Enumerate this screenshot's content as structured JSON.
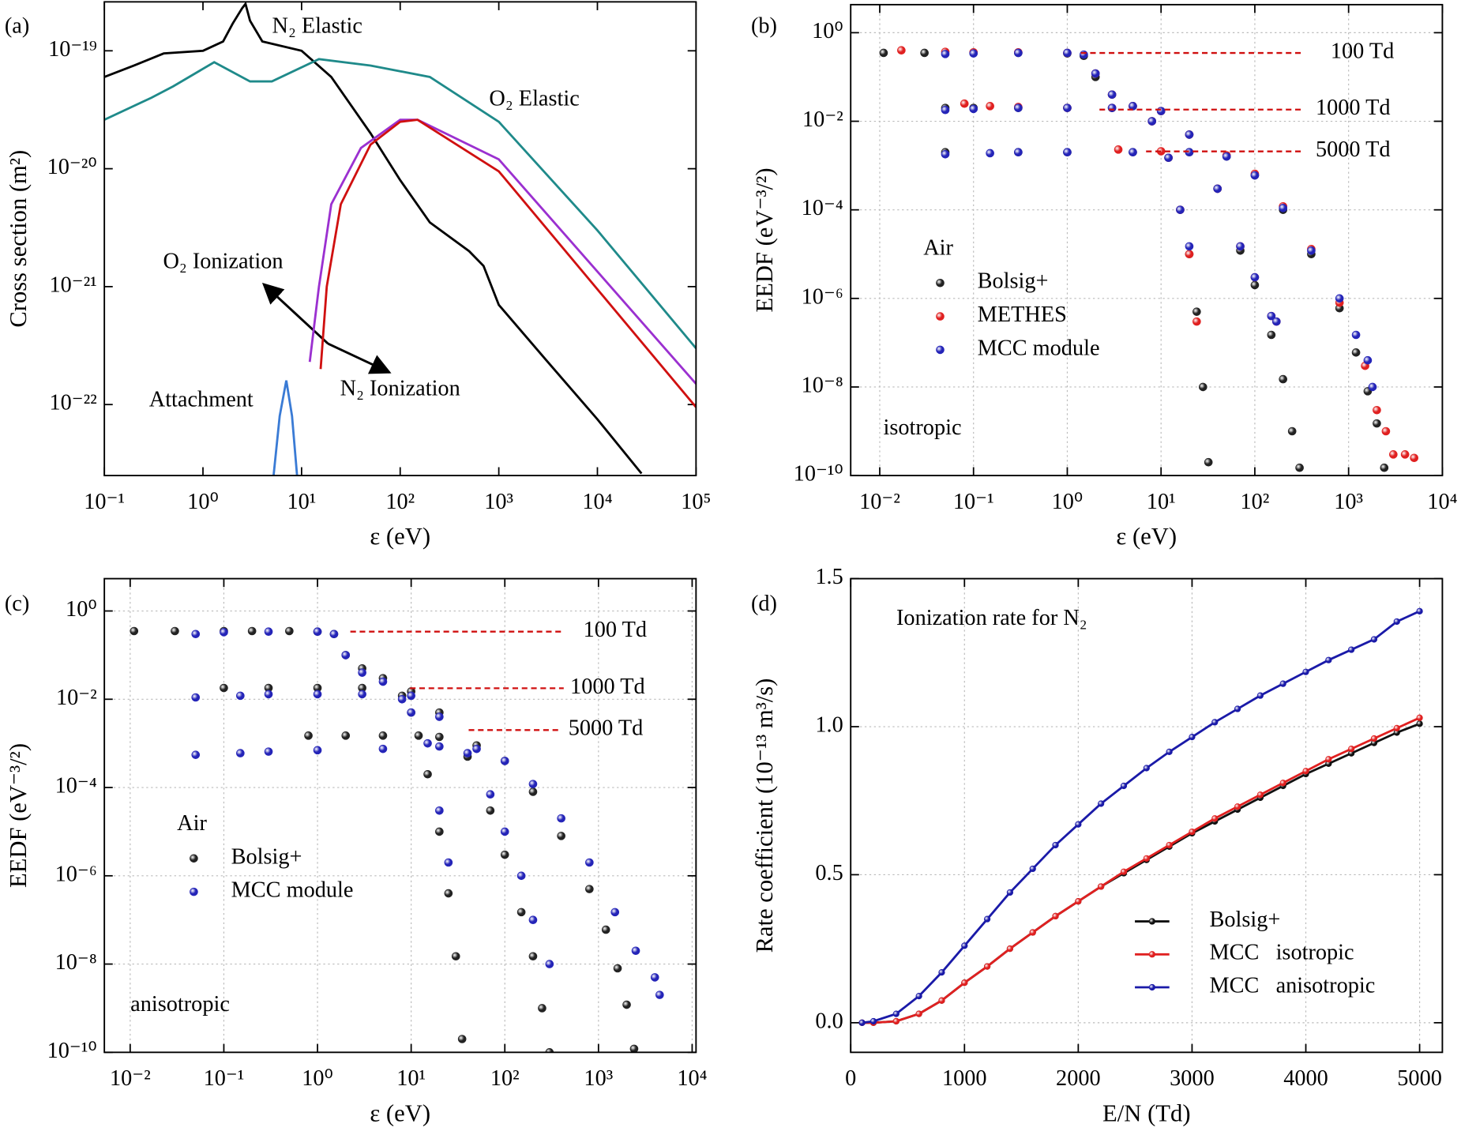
{
  "chart_data": [
    {
      "type": "line",
      "panel": "(a)",
      "xlog": true,
      "ylog": true,
      "xlim": [
        0.1,
        100000
      ],
      "ylim": [
        2.5e-23,
        2.6e-19
      ],
      "xticks": [
        {
          "value": 0.1,
          "label": "10⁻¹"
        },
        {
          "value": 1,
          "label": "10⁰"
        },
        {
          "value": 10,
          "label": "10¹"
        },
        {
          "value": 100,
          "label": "10²"
        },
        {
          "value": 1000,
          "label": "10³"
        },
        {
          "value": 10000,
          "label": "10⁴"
        },
        {
          "value": 100000,
          "label": "10⁵"
        }
      ],
      "yticks": [
        {
          "value": 1e-22,
          "label": "10⁻²²"
        },
        {
          "value": 1e-21,
          "label": "10⁻²¹"
        },
        {
          "value": 1e-20,
          "label": "10⁻²⁰"
        },
        {
          "value": 1e-19,
          "label": "10⁻¹⁹"
        }
      ],
      "xlabel": "ε (eV)",
      "ylabel": "Cross section (m²)",
      "grid": false,
      "series": [
        {
          "name": "N₂ Elastic",
          "color": "#000000",
          "x": [
            0.1,
            0.2,
            0.4,
            1,
            1.6,
            2,
            2.5,
            2.7,
            3,
            4,
            10,
            20,
            50,
            100,
            200,
            500,
            700,
            1000,
            3000,
            10000,
            28000
          ],
          "values": [
            6e-20,
            7.5e-20,
            9.5e-20,
            1e-19,
            1.2e-19,
            1.7e-19,
            2.3e-19,
            2.5e-19,
            1.8e-19,
            1.2e-19,
            1e-19,
            6e-20,
            2e-20,
            8e-21,
            3.5e-21,
            2e-21,
            1.5e-21,
            7e-22,
            2.4e-22,
            7.5e-23,
            2.6e-23
          ]
        },
        {
          "name": "O₂ Elastic",
          "color": "#1f8a8a",
          "x": [
            0.1,
            0.3,
            0.5,
            1.3,
            3,
            5,
            15,
            50,
            200,
            1000,
            10000,
            100000
          ],
          "values": [
            2.6e-20,
            4e-20,
            5e-20,
            8e-20,
            5.5e-20,
            5.5e-20,
            8.5e-20,
            7.5e-20,
            6e-20,
            2.5e-20,
            3e-21,
            3e-22
          ]
        },
        {
          "name": "O₂ Ionization",
          "color": "#9b30d0",
          "x": [
            12.1,
            15,
            20,
            40,
            100,
            150,
            1000,
            100000
          ],
          "values": [
            2.3e-22,
            1e-21,
            5e-21,
            1.5e-20,
            2.6e-20,
            2.6e-20,
            1.2e-20,
            1.5e-22
          ]
        },
        {
          "name": "N₂ Ionization",
          "color": "#d01010",
          "x": [
            15.6,
            18,
            25,
            50,
            100,
            150,
            1000,
            100000
          ],
          "values": [
            2e-22,
            1e-21,
            5e-21,
            1.6e-20,
            2.5e-20,
            2.6e-20,
            9.5e-21,
            9.5e-23
          ]
        },
        {
          "name": "Attachment",
          "color": "#3a7bd5",
          "x": [
            5.2,
            6,
            7,
            8,
            9
          ],
          "values": [
            2.5e-23,
            8e-23,
            1.6e-22,
            8e-23,
            2.5e-23
          ]
        }
      ]
    },
    {
      "type": "scatter",
      "panel": "(b)",
      "xlog": true,
      "ylog": true,
      "xlim": [
        0.0049,
        10000
      ],
      "ylim": [
        1e-10,
        4.3
      ],
      "xticks": [
        {
          "value": 0.01,
          "label": "10⁻²"
        },
        {
          "value": 0.1,
          "label": "10⁻¹"
        },
        {
          "value": 1,
          "label": "10⁰"
        },
        {
          "value": 10,
          "label": "10¹"
        },
        {
          "value": 100,
          "label": "10²"
        },
        {
          "value": 1000,
          "label": "10³"
        },
        {
          "value": 10000,
          "label": "10⁴"
        }
      ],
      "yticks": [
        {
          "value": 1e-10,
          "label": "10⁻¹⁰"
        },
        {
          "value": 1e-08,
          "label": "10⁻⁸"
        },
        {
          "value": 1e-06,
          "label": "10⁻⁶"
        },
        {
          "value": 0.0001,
          "label": "10⁻⁴"
        },
        {
          "value": 0.01,
          "label": "10⁻²"
        },
        {
          "value": 1,
          "label": "10⁰"
        }
      ],
      "xlabel": "ε (eV)",
      "ylabel": "EEDF (eV⁻³/²)",
      "grid": true,
      "legend": "center left",
      "legend_title": "Air",
      "annotations": [
        "100 Td",
        "1000 Td",
        "5000 Td",
        "isotropic"
      ],
      "series": [
        {
          "name": "Bolsig+",
          "color": "#222222",
          "x": [
            0.011,
            0.03,
            0.1,
            0.3,
            1,
            1.5,
            2,
            3,
            5,
            8,
            12,
            16,
            20,
            24,
            28,
            32,
            0.05,
            0.1,
            0.3,
            1,
            3,
            10,
            20,
            40,
            70,
            100,
            150,
            200,
            250,
            300,
            0.05,
            0.3,
            1,
            5,
            20,
            50,
            100,
            200,
            400,
            800,
            1200,
            1600,
            2000,
            2400
          ],
          "values": [
            0.35,
            0.35,
            0.35,
            0.35,
            0.34,
            0.3,
            0.1,
            0.04,
            0.022,
            0.01,
            0.0015,
            0.0001,
            1e-05,
            5e-07,
            1e-08,
            2e-10,
            0.02,
            0.02,
            0.02,
            0.02,
            0.02,
            0.017,
            0.005,
            0.0003,
            1.2e-05,
            2e-06,
            1.5e-07,
            1.5e-08,
            1e-09,
            1.5e-10,
            0.002,
            0.002,
            0.002,
            0.002,
            0.002,
            0.0016,
            0.0006,
            0.0001,
            1e-05,
            6e-07,
            6e-08,
            8e-09,
            1.5e-09,
            1.5e-10
          ]
        },
        {
          "name": "METHES",
          "color": "#e02020",
          "x": [
            0.017,
            0.05,
            0.1,
            0.3,
            1,
            2,
            3,
            5,
            8,
            12,
            16,
            20,
            24,
            0.08,
            0.15,
            0.3,
            1,
            3,
            10,
            20,
            40,
            70,
            100,
            150,
            170,
            3.5,
            10,
            50,
            100,
            200,
            400,
            800,
            1500,
            2000,
            2500,
            3000,
            4000,
            5000
          ],
          "values": [
            0.4,
            0.37,
            0.36,
            0.36,
            0.35,
            0.12,
            0.04,
            0.022,
            0.01,
            0.0015,
            0.0001,
            1e-05,
            3e-07,
            0.025,
            0.022,
            0.021,
            0.02,
            0.02,
            0.017,
            0.005,
            0.0003,
            1.5e-05,
            3e-06,
            4e-07,
            3e-07,
            0.0023,
            0.0021,
            0.0017,
            0.00065,
            0.00012,
            1.3e-05,
            8e-07,
            3e-08,
            3e-09,
            1e-09,
            3e-10,
            3e-10,
            2.5e-10
          ]
        },
        {
          "name": "MCC module",
          "color": "#2424b8",
          "x": [
            0.05,
            0.1,
            0.3,
            1,
            1.5,
            2,
            3,
            5,
            8,
            12,
            16,
            20,
            0.05,
            0.1,
            0.3,
            1,
            3,
            10,
            20,
            40,
            70,
            100,
            150,
            170,
            0.05,
            0.15,
            0.3,
            1,
            5,
            20,
            50,
            100,
            200,
            400,
            800,
            1200,
            1600,
            1800
          ],
          "values": [
            0.33,
            0.34,
            0.35,
            0.35,
            0.32,
            0.12,
            0.04,
            0.022,
            0.01,
            0.0015,
            0.0001,
            1.5e-05,
            0.018,
            0.019,
            0.02,
            0.02,
            0.02,
            0.017,
            0.005,
            0.0003,
            1.5e-05,
            3e-06,
            4e-07,
            3e-07,
            0.0018,
            0.0019,
            0.002,
            0.002,
            0.002,
            0.002,
            0.0016,
            0.0006,
            0.00011,
            1.2e-05,
            1e-06,
            1.5e-07,
            4e-08,
            1e-08
          ]
        }
      ]
    },
    {
      "type": "scatter",
      "panel": "(c)",
      "xlog": true,
      "ylog": true,
      "xlim": [
        0.0053,
        11000
      ],
      "ylim": [
        1e-10,
        5.4
      ],
      "xticks": [
        {
          "value": 0.01,
          "label": "10⁻²"
        },
        {
          "value": 0.1,
          "label": "10⁻¹"
        },
        {
          "value": 1,
          "label": "10⁰"
        },
        {
          "value": 10,
          "label": "10¹"
        },
        {
          "value": 100,
          "label": "10²"
        },
        {
          "value": 1000,
          "label": "10³"
        },
        {
          "value": 10000,
          "label": "10⁴"
        }
      ],
      "yticks": [
        {
          "value": 1e-10,
          "label": "10⁻¹⁰"
        },
        {
          "value": 1e-08,
          "label": "10⁻⁸"
        },
        {
          "value": 1e-06,
          "label": "10⁻⁶"
        },
        {
          "value": 0.0001,
          "label": "10⁻⁴"
        },
        {
          "value": 0.01,
          "label": "10⁻²"
        },
        {
          "value": 1,
          "label": "10⁰"
        }
      ],
      "xlabel": "ε (eV)",
      "ylabel": "EEDF (eV⁻³/²)",
      "grid": true,
      "legend": "center left",
      "legend_title": "Air",
      "annotations": [
        "100 Td",
        "1000 Td",
        "5000 Td",
        "anisotropic"
      ],
      "series": [
        {
          "name": "Bolsig+",
          "color": "#222222",
          "x": [
            0.011,
            0.03,
            0.1,
            0.2,
            0.5,
            1,
            1.5,
            2,
            3,
            5,
            8,
            10,
            12,
            15,
            20,
            25,
            30,
            35,
            0.1,
            0.3,
            1,
            3,
            10,
            20,
            40,
            70,
            100,
            150,
            200,
            250,
            300,
            0.8,
            2,
            5,
            20,
            50,
            100,
            200,
            400,
            800,
            1200,
            1600,
            2000,
            2400
          ],
          "values": [
            0.35,
            0.35,
            0.35,
            0.35,
            0.35,
            0.34,
            0.3,
            0.1,
            0.05,
            0.03,
            0.012,
            0.005,
            0.0015,
            0.0002,
            1e-05,
            4e-07,
            1.5e-08,
            2e-10,
            0.018,
            0.018,
            0.018,
            0.018,
            0.015,
            0.005,
            0.0005,
            3e-05,
            3e-06,
            1.5e-07,
            1.5e-08,
            1e-09,
            1e-10,
            0.0015,
            0.0015,
            0.0015,
            0.0014,
            0.0009,
            0.0004,
            8e-05,
            8e-06,
            5e-07,
            6e-08,
            8e-09,
            1.2e-09,
            1.2e-10
          ]
        },
        {
          "name": "MCC module",
          "color": "#2424b8",
          "x": [
            0.05,
            0.1,
            0.3,
            1,
            1.5,
            2,
            3,
            5,
            8,
            10,
            15,
            20,
            25,
            0.05,
            0.15,
            0.3,
            1,
            3,
            10,
            20,
            40,
            70,
            100,
            150,
            200,
            300,
            0.05,
            0.15,
            0.3,
            1,
            5,
            20,
            50,
            100,
            200,
            400,
            800,
            1500,
            2500,
            4000,
            4500
          ],
          "values": [
            0.3,
            0.33,
            0.34,
            0.34,
            0.3,
            0.1,
            0.04,
            0.025,
            0.01,
            0.005,
            0.001,
            3e-05,
            2e-06,
            0.011,
            0.012,
            0.013,
            0.013,
            0.013,
            0.012,
            0.004,
            0.0006,
            7e-05,
            1e-05,
            1e-06,
            1e-07,
            1e-08,
            0.00055,
            0.0006,
            0.00065,
            0.0007,
            0.00075,
            0.00085,
            0.00075,
            0.0004,
            0.00012,
            2e-05,
            2e-06,
            1.5e-07,
            2e-08,
            5e-09,
            2e-09
          ]
        }
      ]
    },
    {
      "type": "line",
      "panel": "(d)",
      "markers": true,
      "xlim": [
        0,
        5200
      ],
      "ylim": [
        -0.1,
        1.5
      ],
      "xticks": [
        0,
        1000,
        2000,
        3000,
        4000,
        5000
      ],
      "yticks": [
        {
          "value": 0,
          "label": "0.0"
        },
        {
          "value": 0.5,
          "label": "0.5"
        },
        {
          "value": 1,
          "label": "1.0"
        },
        {
          "value": 1.5,
          "label": "1.5"
        }
      ],
      "xlabel": "E/N (Td)",
      "ylabel": "Rate coefficient (10⁻¹³ m³/s)",
      "grid": true,
      "legend": "lower right",
      "annotations": [
        "Ionization rate for N₂"
      ],
      "x": [
        100,
        200,
        400,
        600,
        800,
        1000,
        1200,
        1400,
        1600,
        1800,
        2000,
        2200,
        2400,
        2600,
        2800,
        3000,
        3200,
        3400,
        3600,
        3800,
        4000,
        4200,
        4400,
        4600,
        4800,
        5000
      ],
      "series": [
        {
          "name": "Bolsig+",
          "color": "#111111",
          "values": [
            0,
            0,
            0.005,
            0.03,
            0.075,
            0.135,
            0.19,
            0.25,
            0.305,
            0.36,
            0.41,
            0.46,
            0.505,
            0.55,
            0.595,
            0.64,
            0.68,
            0.72,
            0.76,
            0.8,
            0.84,
            0.875,
            0.91,
            0.945,
            0.98,
            1.01
          ]
        },
        {
          "name": "MCC   isotropic",
          "color": "#e02020",
          "values": [
            0,
            0,
            0.005,
            0.03,
            0.075,
            0.135,
            0.19,
            0.25,
            0.305,
            0.36,
            0.41,
            0.46,
            0.51,
            0.555,
            0.6,
            0.645,
            0.69,
            0.73,
            0.77,
            0.81,
            0.85,
            0.89,
            0.925,
            0.96,
            0.995,
            1.03
          ]
        },
        {
          "name": "MCC   anisotropic",
          "color": "#1a1aa8",
          "values": [
            0,
            0.005,
            0.03,
            0.09,
            0.17,
            0.26,
            0.35,
            0.44,
            0.52,
            0.6,
            0.67,
            0.74,
            0.8,
            0.86,
            0.915,
            0.965,
            1.015,
            1.06,
            1.105,
            1.145,
            1.185,
            1.225,
            1.26,
            1.295,
            1.355,
            1.39
          ]
        }
      ]
    }
  ]
}
